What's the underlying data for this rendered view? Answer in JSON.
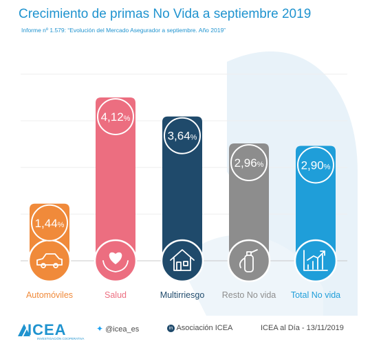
{
  "header": {
    "title": "Crecimiento de primas No Vida a septiembre 2019",
    "subtitle": "Informe nº 1.579: “Evolución del Mercado Asegurador a septiembre. Año 2019”"
  },
  "chart_data": {
    "type": "bar",
    "categories": [
      "Automóviles",
      "Salud",
      "Multirriesgo",
      "Resto No vida",
      "Total No vida"
    ],
    "values": [
      1.44,
      4.12,
      3.64,
      2.96,
      2.9
    ],
    "value_labels": [
      "1,44",
      "4,12",
      "3,64",
      "2,96",
      "2,90"
    ],
    "unit": "%",
    "title": "Crecimiento de primas No Vida a septiembre 2019",
    "xlabel": "",
    "ylabel": "",
    "ylim": [
      0,
      4.5
    ],
    "grid": true,
    "legend": "none",
    "colors": [
      "#f08a3a",
      "#ec6e80",
      "#1f4a6b",
      "#8d8d8d",
      "#1f9ed9"
    ],
    "icons": [
      "car-icon",
      "heart-in-hands-icon",
      "house-icon",
      "fire-extinguisher-icon",
      "growth-chart-icon"
    ]
  },
  "footer": {
    "brand": "ICEA",
    "brand_tagline": "INVESTIGACIÓN COOPERATIVA",
    "twitter": "@icea_es",
    "linkedin": "Asociación ICEA",
    "date_text": "ICEA al Día - 13/11/2019"
  }
}
